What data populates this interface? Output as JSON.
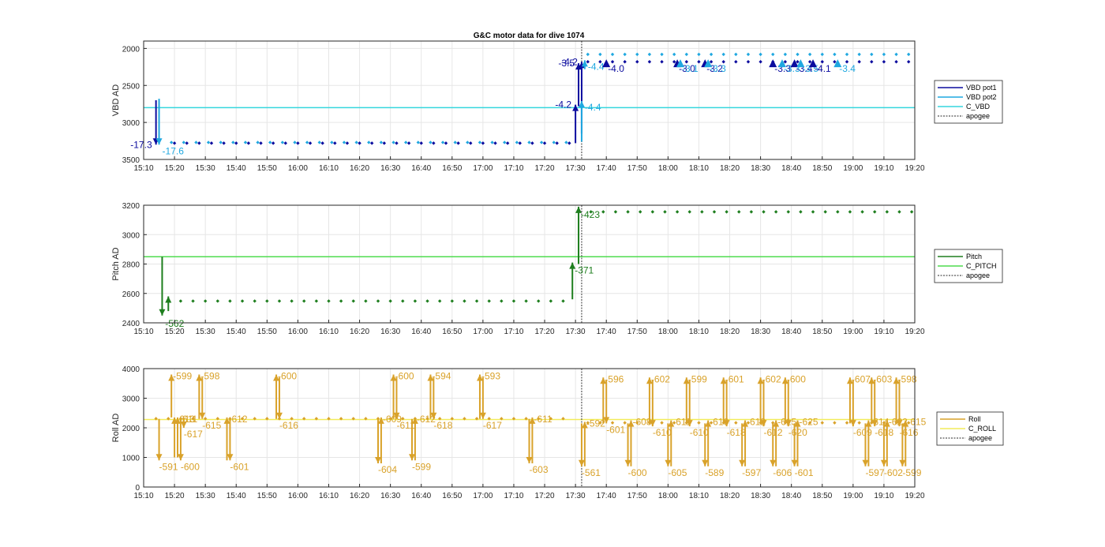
{
  "title": "G&C motor data for dive 1074",
  "colors": {
    "vbd_pot1": "#0b0b9e",
    "vbd_pot2": "#1fa8e0",
    "c_vbd": "#35d6de",
    "pitch": "#1e7e1e",
    "c_pitch": "#4fdc4f",
    "roll": "#d9a22a",
    "c_roll": "#f2ec5a",
    "apogee": "#555555"
  },
  "chart_data": [
    {
      "type": "scatter",
      "ylabel": "VBD AD",
      "y_reversed": true,
      "ylim": [
        1900,
        3500
      ],
      "yticks": [
        2000,
        2500,
        3000,
        3500
      ],
      "xlim": [
        "15:10",
        "19:20"
      ],
      "xticks": [
        "15:10",
        "15:20",
        "15:30",
        "15:40",
        "15:50",
        "16:00",
        "16:10",
        "16:20",
        "16:30",
        "16:40",
        "16:50",
        "17:00",
        "17:10",
        "17:20",
        "17:30",
        "17:40",
        "17:50",
        "18:00",
        "18:10",
        "18:20",
        "18:30",
        "18:40",
        "18:50",
        "19:00",
        "19:10",
        "19:20"
      ],
      "grid": true,
      "legend_position": "right",
      "legend": [
        "VBD pot1",
        "VBD pot2",
        "C_VBD",
        "apogee"
      ],
      "reference_lines": [
        {
          "name": "C_VBD",
          "y": 2800
        }
      ],
      "apogee_x": "17:32",
      "series": [
        {
          "name": "VBD pot1",
          "segments": [
            {
              "x0": "15:20",
              "x1": "17:29",
              "y": 3280,
              "step_min": 4
            },
            {
              "x0": "17:34",
              "x1": "19:19",
              "y": 2180,
              "step_min": 4
            }
          ]
        },
        {
          "name": "VBD pot2",
          "segments": [
            {
              "x0": "15:19",
              "x1": "17:29",
              "y": 3270,
              "step_min": 4
            },
            {
              "x0": "17:34",
              "x1": "19:19",
              "y": 2080,
              "step_min": 4
            }
          ]
        }
      ],
      "arrows": [
        {
          "x": "15:14",
          "y_from": 2700,
          "y_to": 3300,
          "label": "-17.3",
          "series": "VBD pot1",
          "label_side": "left"
        },
        {
          "x": "15:15",
          "y_from": 2680,
          "y_to": 3300,
          "label": "-17.6",
          "series": "VBD pot2",
          "label_side": "right"
        },
        {
          "x": "17:30",
          "y_from": 3280,
          "y_to": 2760,
          "label": "-4.2",
          "series": "VBD pot1",
          "label_side": "left"
        },
        {
          "x": "17:31",
          "y_from": 2780,
          "y_to": 2200,
          "label": "-3.5",
          "series": "VBD pot1",
          "label_side": "left"
        },
        {
          "x": "17:32",
          "y_from": 3150,
          "y_to": 2180,
          "label": "-4.2",
          "series": "VBD pot1",
          "label_side": "left"
        },
        {
          "x": "17:32",
          "y_from": 3260,
          "y_to": 2710,
          "label": "-4.4",
          "series": "VBD pot2",
          "label_side": "right"
        },
        {
          "x": "17:33",
          "y_from": 2280,
          "y_to": 2160,
          "label": "-4.4",
          "series": "VBD pot2",
          "label_side": "right"
        }
      ],
      "markers": [
        {
          "x": "17:40",
          "label": "-4.0",
          "series": "VBD pot1"
        },
        {
          "x": "18:03",
          "label": "-3.0",
          "series": "VBD pot1"
        },
        {
          "x": "18:04",
          "label": "-3.1",
          "series": "VBD pot2"
        },
        {
          "x": "18:12",
          "label": "-3.2",
          "series": "VBD pot1"
        },
        {
          "x": "18:13",
          "label": "-3.3",
          "series": "VBD pot2"
        },
        {
          "x": "18:34",
          "label": "-3.3",
          "series": "VBD pot1"
        },
        {
          "x": "18:37",
          "label": "-3.3",
          "series": "VBD pot2"
        },
        {
          "x": "18:41",
          "label": "-3.4",
          "series": "VBD pot1"
        },
        {
          "x": "18:43",
          "label": "-3.5",
          "series": "VBD pot2"
        },
        {
          "x": "18:47",
          "label": "-4.1",
          "series": "VBD pot1"
        },
        {
          "x": "18:55",
          "label": "-3.4",
          "series": "VBD pot2"
        }
      ]
    },
    {
      "type": "scatter",
      "ylabel": "Pitch AD",
      "ylim": [
        2400,
        3200
      ],
      "yticks": [
        2400,
        2600,
        2800,
        3000,
        3200
      ],
      "xlim": [
        "15:10",
        "19:20"
      ],
      "xticks": [
        "15:10",
        "15:20",
        "15:30",
        "15:40",
        "15:50",
        "16:00",
        "16:10",
        "16:20",
        "16:30",
        "16:40",
        "16:50",
        "17:00",
        "17:10",
        "17:20",
        "17:30",
        "17:40",
        "17:50",
        "18:00",
        "18:10",
        "18:20",
        "18:30",
        "18:40",
        "18:50",
        "19:00",
        "19:10",
        "19:20"
      ],
      "grid": true,
      "legend_position": "right",
      "legend": [
        "Pitch",
        "C_PITCH",
        "apogee"
      ],
      "reference_lines": [
        {
          "name": "C_PITCH",
          "y": 2850
        }
      ],
      "apogee_x": "17:32",
      "series": [
        {
          "name": "Pitch",
          "segments": [
            {
              "x0": "15:18",
              "x1": "17:28",
              "y": 2548,
              "step_min": 4
            },
            {
              "x0": "17:35",
              "x1": "19:19",
              "y": 3155,
              "step_min": 4
            }
          ]
        }
      ],
      "arrows": [
        {
          "x": "15:16",
          "y_from": 2850,
          "y_to": 2450,
          "label": "",
          "series": "Pitch",
          "label_side": "right"
        },
        {
          "x": "15:18",
          "y_from": 2480,
          "y_to": 2580,
          "label": "-562",
          "series": "Pitch",
          "label_side": "below"
        },
        {
          "x": "17:29",
          "y_from": 2560,
          "y_to": 2810,
          "label": "-371",
          "series": "Pitch",
          "label_side": "right"
        },
        {
          "x": "17:31",
          "y_from": 2800,
          "y_to": 3190,
          "label": "-423",
          "series": "Pitch",
          "label_side": "right"
        }
      ]
    },
    {
      "type": "scatter",
      "ylabel": "Roll AD",
      "ylim": [
        0,
        4000
      ],
      "yticks": [
        0,
        1000,
        2000,
        3000,
        4000
      ],
      "xlim": [
        "15:10",
        "19:20"
      ],
      "xticks": [
        "15:10",
        "15:20",
        "15:30",
        "15:40",
        "15:50",
        "16:00",
        "16:10",
        "16:20",
        "16:30",
        "16:40",
        "16:50",
        "17:00",
        "17:10",
        "17:20",
        "17:30",
        "17:40",
        "17:50",
        "18:00",
        "18:10",
        "18:20",
        "18:30",
        "18:40",
        "18:50",
        "19:00",
        "19:10",
        "19:20"
      ],
      "grid": true,
      "legend_position": "right",
      "legend": [
        "Roll",
        "C_ROLL",
        "apogee"
      ],
      "reference_lines": [
        {
          "name": "C_ROLL",
          "y": 2280
        }
      ],
      "apogee_x": "17:32",
      "series": [
        {
          "name": "Roll",
          "segments": [
            {
              "x0": "15:14",
              "x1": "17:28",
              "y": 2310,
              "step_min": 4
            },
            {
              "x0": "17:34",
              "x1": "19:19",
              "y": 2170,
              "step_min": 4
            }
          ]
        }
      ],
      "arrows": [
        {
          "x": "15:15",
          "y_from": 2300,
          "y_to": 900,
          "label": "-591",
          "side": "down"
        },
        {
          "x": "15:19",
          "y_from": 2350,
          "y_to": 3800,
          "label": "-599",
          "side": "up"
        },
        {
          "x": "15:20",
          "y_from": 1000,
          "y_to": 2350,
          "label": "-613",
          "side": "up"
        },
        {
          "x": "15:21",
          "y_from": 1000,
          "y_to": 2350,
          "label": "-611",
          "side": "up"
        },
        {
          "x": "15:22",
          "y_from": 2300,
          "y_to": 900,
          "label": "-600",
          "side": "down"
        },
        {
          "x": "15:23",
          "y_from": 2350,
          "y_to": 2000,
          "label": "-617",
          "side": "down"
        },
        {
          "x": "15:28",
          "y_from": 2300,
          "y_to": 3800,
          "label": "-598",
          "side": "up"
        },
        {
          "x": "15:29",
          "y_from": 3700,
          "y_to": 2300,
          "label": "-615",
          "side": "down"
        },
        {
          "x": "15:37",
          "y_from": 900,
          "y_to": 2350,
          "label": "-612",
          "side": "up"
        },
        {
          "x": "15:38",
          "y_from": 2300,
          "y_to": 900,
          "label": "-601",
          "side": "down"
        },
        {
          "x": "15:53",
          "y_from": 2300,
          "y_to": 3800,
          "label": "-600",
          "side": "up"
        },
        {
          "x": "15:54",
          "y_from": 3700,
          "y_to": 2300,
          "label": "-616",
          "side": "down"
        },
        {
          "x": "16:26",
          "y_from": 2300,
          "y_to": 800,
          "label": "-604",
          "side": "down"
        },
        {
          "x": "16:27",
          "y_from": 800,
          "y_to": 2350,
          "label": "-609",
          "side": "up"
        },
        {
          "x": "16:31",
          "y_from": 2300,
          "y_to": 3800,
          "label": "-600",
          "side": "up"
        },
        {
          "x": "16:32",
          "y_from": 3700,
          "y_to": 2300,
          "label": "-611",
          "side": "down"
        },
        {
          "x": "16:37",
          "y_from": 2300,
          "y_to": 900,
          "label": "-599",
          "side": "down"
        },
        {
          "x": "16:38",
          "y_from": 900,
          "y_to": 2350,
          "label": "-612",
          "side": "up"
        },
        {
          "x": "16:43",
          "y_from": 2300,
          "y_to": 3800,
          "label": "-594",
          "side": "up"
        },
        {
          "x": "16:44",
          "y_from": 3700,
          "y_to": 2300,
          "label": "-618",
          "side": "down"
        },
        {
          "x": "16:59",
          "y_from": 2300,
          "y_to": 3800,
          "label": "-593",
          "side": "up"
        },
        {
          "x": "17:00",
          "y_from": 3700,
          "y_to": 2300,
          "label": "-617",
          "side": "down"
        },
        {
          "x": "17:15",
          "y_from": 2300,
          "y_to": 800,
          "label": "-603",
          "side": "down"
        },
        {
          "x": "17:16",
          "y_from": 800,
          "y_to": 2350,
          "label": "-611",
          "side": "up"
        },
        {
          "x": "17:32",
          "y_from": 2150,
          "y_to": 700,
          "label": "-561",
          "side": "down"
        },
        {
          "x": "17:33",
          "y_from": 700,
          "y_to": 2200,
          "label": "-592",
          "side": "up"
        },
        {
          "x": "17:39",
          "y_from": 2150,
          "y_to": 3700,
          "label": "-596",
          "side": "up"
        },
        {
          "x": "17:40",
          "y_from": 3600,
          "y_to": 2150,
          "label": "-601",
          "side": "down"
        },
        {
          "x": "17:47",
          "y_from": 2150,
          "y_to": 700,
          "label": "-600",
          "side": "down"
        },
        {
          "x": "17:48",
          "y_from": 700,
          "y_to": 2250,
          "label": "-608",
          "side": "up"
        },
        {
          "x": "17:54",
          "y_from": 2150,
          "y_to": 3700,
          "label": "-602",
          "side": "up"
        },
        {
          "x": "17:55",
          "y_from": 3600,
          "y_to": 2050,
          "label": "-610",
          "side": "down"
        },
        {
          "x": "18:00",
          "y_from": 2150,
          "y_to": 700,
          "label": "-605",
          "side": "down"
        },
        {
          "x": "18:01",
          "y_from": 700,
          "y_to": 2250,
          "label": "-611",
          "side": "up"
        },
        {
          "x": "18:06",
          "y_from": 2150,
          "y_to": 3700,
          "label": "-599",
          "side": "up"
        },
        {
          "x": "18:07",
          "y_from": 3600,
          "y_to": 2050,
          "label": "-610",
          "side": "down"
        },
        {
          "x": "18:12",
          "y_from": 2150,
          "y_to": 700,
          "label": "-589",
          "side": "down"
        },
        {
          "x": "18:13",
          "y_from": 700,
          "y_to": 2250,
          "label": "-616",
          "side": "up"
        },
        {
          "x": "18:18",
          "y_from": 2150,
          "y_to": 3700,
          "label": "-601",
          "side": "up"
        },
        {
          "x": "18:19",
          "y_from": 3600,
          "y_to": 2050,
          "label": "-618",
          "side": "down"
        },
        {
          "x": "18:24",
          "y_from": 2150,
          "y_to": 700,
          "label": "-597",
          "side": "down"
        },
        {
          "x": "18:25",
          "y_from": 700,
          "y_to": 2250,
          "label": "-612",
          "side": "up"
        },
        {
          "x": "18:30",
          "y_from": 2150,
          "y_to": 3700,
          "label": "-602",
          "side": "up"
        },
        {
          "x": "18:31",
          "y_from": 3600,
          "y_to": 2050,
          "label": "-612",
          "side": "down"
        },
        {
          "x": "18:34",
          "y_from": 2150,
          "y_to": 700,
          "label": "-606",
          "side": "down"
        },
        {
          "x": "18:35",
          "y_from": 700,
          "y_to": 2250,
          "label": "-615",
          "side": "up"
        },
        {
          "x": "18:38",
          "y_from": 2150,
          "y_to": 3700,
          "label": "-600",
          "side": "up"
        },
        {
          "x": "18:39",
          "y_from": 3600,
          "y_to": 2050,
          "label": "-620",
          "side": "down"
        },
        {
          "x": "18:41",
          "y_from": 2150,
          "y_to": 700,
          "label": "-601",
          "side": "down"
        },
        {
          "x": "18:42",
          "y_from": 700,
          "y_to": 2250,
          "label": "-625",
          "side": "up"
        },
        {
          "x": "18:59",
          "y_from": 2150,
          "y_to": 3700,
          "label": "-607",
          "side": "up"
        },
        {
          "x": "19:00",
          "y_from": 3600,
          "y_to": 2050,
          "label": "-609",
          "side": "down"
        },
        {
          "x": "19:04",
          "y_from": 2150,
          "y_to": 700,
          "label": "-597",
          "side": "down"
        },
        {
          "x": "19:05",
          "y_from": 700,
          "y_to": 2250,
          "label": "-614",
          "side": "up"
        },
        {
          "x": "19:06",
          "y_from": 2150,
          "y_to": 3700,
          "label": "-603",
          "side": "up"
        },
        {
          "x": "19:07",
          "y_from": 3600,
          "y_to": 2050,
          "label": "-618",
          "side": "down"
        },
        {
          "x": "19:10",
          "y_from": 2150,
          "y_to": 700,
          "label": "-602",
          "side": "down"
        },
        {
          "x": "19:11",
          "y_from": 700,
          "y_to": 2250,
          "label": "-622",
          "side": "up"
        },
        {
          "x": "19:14",
          "y_from": 2150,
          "y_to": 3700,
          "label": "-598",
          "side": "up"
        },
        {
          "x": "19:15",
          "y_from": 3600,
          "y_to": 2050,
          "label": "-616",
          "side": "down"
        },
        {
          "x": "19:16",
          "y_from": 2150,
          "y_to": 700,
          "label": "-599",
          "side": "down"
        },
        {
          "x": "19:17",
          "y_from": 700,
          "y_to": 2250,
          "label": "-615",
          "side": "up"
        }
      ]
    }
  ]
}
